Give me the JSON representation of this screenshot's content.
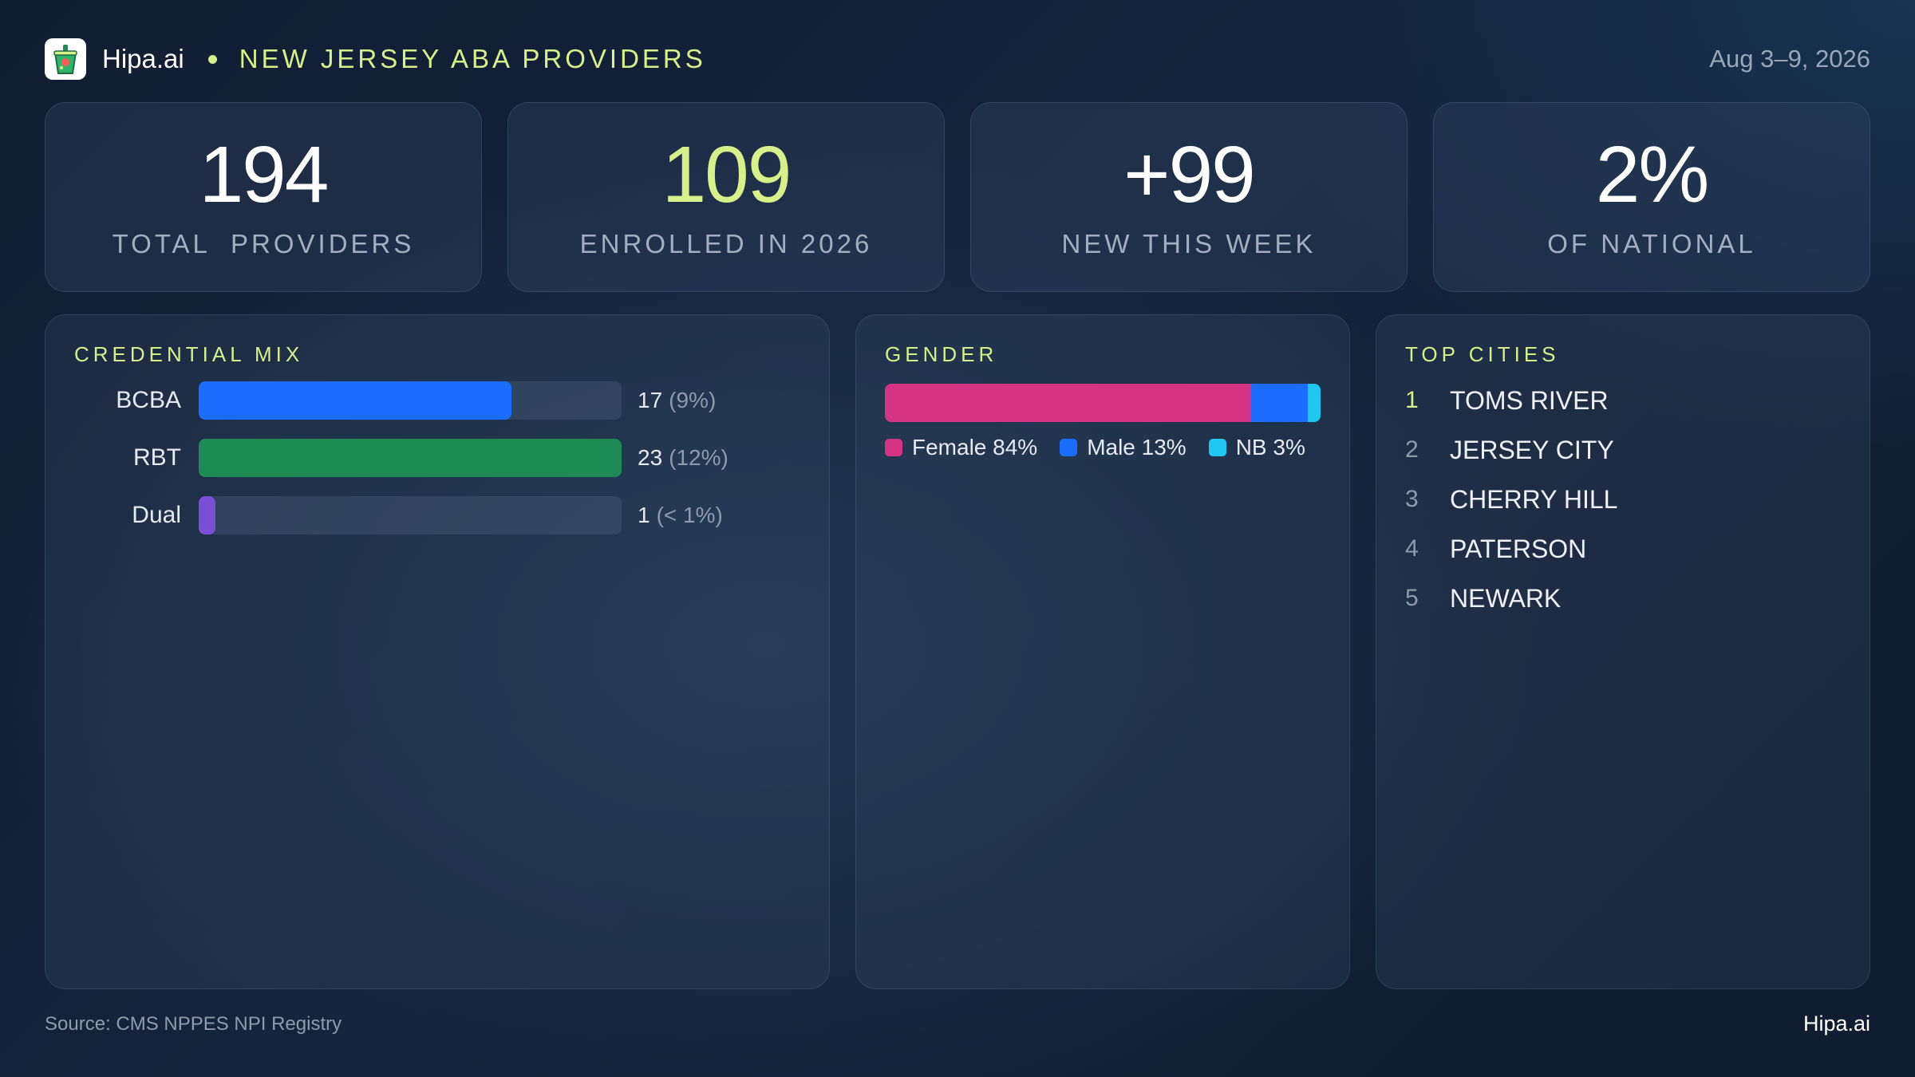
{
  "header": {
    "brand": "Hipa.ai",
    "title": "NEW JERSEY ABA PROVIDERS",
    "date": "Aug 3–9, 2026",
    "logo_icon": "cup-icon"
  },
  "kpis": [
    {
      "value": "194",
      "label": "TOTAL  PROVIDERS"
    },
    {
      "value": "109",
      "label": "ENROLLED IN 2026"
    },
    {
      "value": "+99",
      "label": "NEW THIS WEEK"
    },
    {
      "value": "2%",
      "label": "OF NATIONAL"
    }
  ],
  "credential": {
    "title": "CREDENTIAL MIX",
    "rows": [
      {
        "name": "BCBA",
        "count": "17",
        "pct": "(9%)",
        "fill": 0.74,
        "color": "#1a6dff"
      },
      {
        "name": "RBT",
        "count": "23",
        "pct": "(12%)",
        "fill": 1.0,
        "color": "#1e8a55"
      },
      {
        "name": "Dual",
        "count": "1",
        "pct": "(< 1%)",
        "fill": 0.04,
        "color": "#7a4fd6"
      }
    ]
  },
  "gender": {
    "title": "GENDER",
    "segments": [
      {
        "label": "Female 84%",
        "share": 84,
        "color": "#d63384"
      },
      {
        "label": "Male 13%",
        "share": 13,
        "color": "#1a6dff"
      },
      {
        "label": "NB 3%",
        "share": 3,
        "color": "#1ec8f0"
      }
    ]
  },
  "cities": {
    "title": "TOP CITIES",
    "items": [
      {
        "rank": "1",
        "name": "TOMS RIVER"
      },
      {
        "rank": "2",
        "name": "JERSEY CITY"
      },
      {
        "rank": "3",
        "name": "CHERRY HILL"
      },
      {
        "rank": "4",
        "name": "PATERSON"
      },
      {
        "rank": "5",
        "name": "NEWARK"
      }
    ]
  },
  "footer": {
    "source": "Source: CMS NPPES NPI Registry",
    "brand": "Hipa.ai"
  },
  "colors": {
    "accent": "#d6f08a",
    "rank_first": "#d6f08a",
    "rank_other": "#8e9bad"
  }
}
